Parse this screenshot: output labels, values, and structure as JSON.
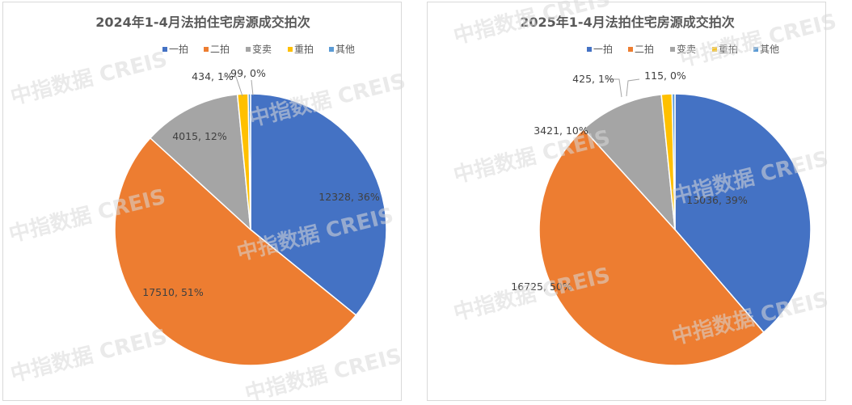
{
  "watermark_text": "中指数据 CREIS",
  "chart_data": [
    {
      "type": "pie",
      "title": "2024年1-4月法拍住宅房源成交拍次",
      "legend_position": "top",
      "categories": [
        "一拍",
        "二拍",
        "变卖",
        "重拍",
        "其他"
      ],
      "values": [
        12328,
        17510,
        4015,
        434,
        99
      ],
      "labels": [
        "12328, 36%",
        "17510, 51%",
        "4015, 12%",
        "434, 1%",
        "99, 0%"
      ],
      "colors": [
        "#4472C4",
        "#ED7D31",
        "#A5A5A5",
        "#FFC000",
        "#5B9BD5"
      ]
    },
    {
      "type": "pie",
      "title": "2025年1-4月法拍住宅房源成交拍次",
      "legend_position": "top",
      "categories": [
        "一拍",
        "二拍",
        "变卖",
        "重拍",
        "其他"
      ],
      "values": [
        13036,
        16725,
        3421,
        425,
        115
      ],
      "labels": [
        "13036, 39%",
        "16725, 50%",
        "3421, 10%",
        "425, 1%",
        "115, 0%"
      ],
      "colors": [
        "#4472C4",
        "#ED7D31",
        "#A5A5A5",
        "#FFC000",
        "#5B9BD5"
      ]
    }
  ]
}
